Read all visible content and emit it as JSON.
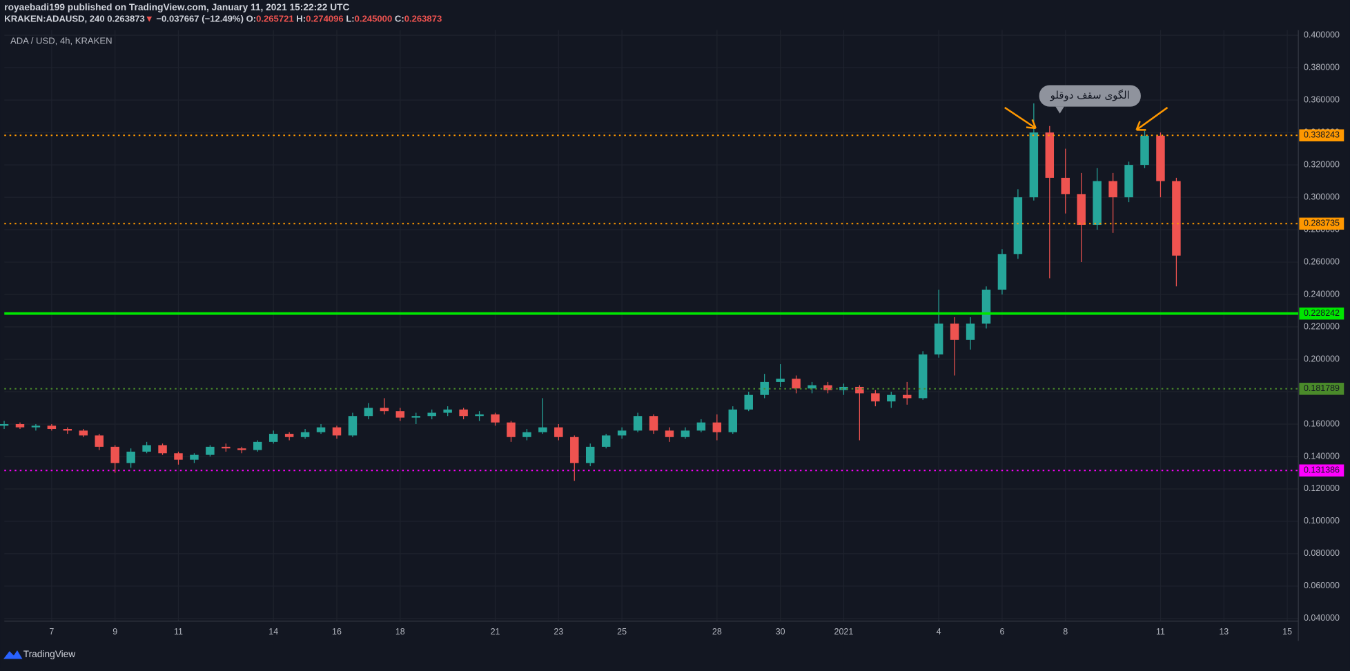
{
  "header": {
    "publisher_line": "royaebadi199 published on TradingView.com, January 11, 2021 15:22:22 UTC",
    "symbol": "KRAKEN:ADAUSD, 240",
    "last": "0.263873",
    "arrow": "▼",
    "change": "−0.037667 (−12.49%)",
    "o_label": "O:",
    "o": "0.265721",
    "h_label": "H:",
    "h": "0.274096",
    "l_label": "L:",
    "l": "0.245000",
    "c_label": "C:",
    "c": "0.263873"
  },
  "footer": {
    "brand": "TradingView"
  },
  "chart_data": {
    "type": "candlestick",
    "title": "ADA / USD, 4h, KRAKEN",
    "up_color": "#26a69a",
    "down_color": "#ef5350",
    "grid": true,
    "xlim": [
      5.505,
      46.35
    ],
    "ylim": [
      0.0384,
      0.4032
    ],
    "xticks": [
      7,
      9,
      11,
      14,
      16,
      18,
      21,
      23,
      25,
      28,
      30,
      {
        "value": 32,
        "label": "2021"
      },
      {
        "value": 35,
        "label": "4"
      },
      {
        "value": 37,
        "label": "6"
      },
      {
        "value": 39,
        "label": "8"
      },
      {
        "value": 42,
        "label": "11"
      },
      {
        "value": 44,
        "label": "13"
      },
      {
        "value": 46,
        "label": "15"
      }
    ],
    "yticks": [
      {
        "value": 0.04,
        "label": "0.040000"
      },
      {
        "value": 0.06,
        "label": "0.060000"
      },
      {
        "value": 0.08,
        "label": "0.080000"
      },
      {
        "value": 0.1,
        "label": "0.100000"
      },
      {
        "value": 0.12,
        "label": "0.120000"
      },
      {
        "value": 0.14,
        "label": "0.140000"
      },
      {
        "value": 0.16,
        "label": "0.160000"
      },
      {
        "value": 0.18,
        "label": "0.180000"
      },
      {
        "value": 0.2,
        "label": "0.200000"
      },
      {
        "value": 0.22,
        "label": "0.220000"
      },
      {
        "value": 0.24,
        "label": "0.240000"
      },
      {
        "value": 0.26,
        "label": "0.260000"
      },
      {
        "value": 0.28,
        "label": "0.280000"
      },
      {
        "value": 0.3,
        "label": "0.300000"
      },
      {
        "value": 0.32,
        "label": "0.320000"
      },
      {
        "value": 0.34,
        "label": "0.340000"
      },
      {
        "value": 0.36,
        "label": "0.360000"
      },
      {
        "value": 0.38,
        "label": "0.380000"
      },
      {
        "value": 0.4,
        "label": "0.400000"
      }
    ],
    "x": [
      5.5,
      6,
      6.5,
      7,
      7.5,
      8,
      8.5,
      9,
      9.5,
      10,
      10.5,
      11,
      11.5,
      12,
      12.5,
      13,
      13.5,
      14,
      14.5,
      15,
      15.5,
      16,
      16.5,
      17,
      17.5,
      18,
      18.5,
      19,
      19.5,
      20,
      20.5,
      21,
      21.5,
      22,
      22.5,
      23,
      23.5,
      24,
      24.5,
      25,
      25.5,
      26,
      26.5,
      27,
      27.5,
      28,
      28.5,
      29,
      29.5,
      30,
      30.5,
      31,
      31.5,
      32,
      32.5,
      33,
      33.5,
      34,
      34.5,
      35,
      35.5,
      36,
      36.5,
      37,
      37.5,
      38,
      38.5,
      39,
      39.5,
      40,
      40.5,
      41,
      41.5,
      42,
      42.5
    ],
    "ohlc": [
      [
        0.159,
        0.162,
        0.157,
        0.16
      ],
      [
        0.16,
        0.161,
        0.157,
        0.158
      ],
      [
        0.158,
        0.16,
        0.156,
        0.159
      ],
      [
        0.159,
        0.16,
        0.156,
        0.157
      ],
      [
        0.157,
        0.158,
        0.154,
        0.156
      ],
      [
        0.156,
        0.157,
        0.152,
        0.153
      ],
      [
        0.153,
        0.154,
        0.144,
        0.146
      ],
      [
        0.146,
        0.147,
        0.13,
        0.136
      ],
      [
        0.136,
        0.145,
        0.133,
        0.143
      ],
      [
        0.143,
        0.149,
        0.142,
        0.147
      ],
      [
        0.147,
        0.148,
        0.141,
        0.142
      ],
      [
        0.142,
        0.143,
        0.135,
        0.138
      ],
      [
        0.138,
        0.142,
        0.136,
        0.141
      ],
      [
        0.141,
        0.147,
        0.14,
        0.146
      ],
      [
        0.146,
        0.148,
        0.143,
        0.145
      ],
      [
        0.145,
        0.146,
        0.142,
        0.144
      ],
      [
        0.144,
        0.15,
        0.143,
        0.149
      ],
      [
        0.149,
        0.156,
        0.148,
        0.154
      ],
      [
        0.154,
        0.155,
        0.15,
        0.152
      ],
      [
        0.152,
        0.157,
        0.151,
        0.155
      ],
      [
        0.155,
        0.16,
        0.154,
        0.158
      ],
      [
        0.158,
        0.159,
        0.151,
        0.153
      ],
      [
        0.153,
        0.167,
        0.152,
        0.165
      ],
      [
        0.165,
        0.173,
        0.163,
        0.17
      ],
      [
        0.17,
        0.176,
        0.166,
        0.168
      ],
      [
        0.168,
        0.17,
        0.162,
        0.164
      ],
      [
        0.164,
        0.167,
        0.16,
        0.165
      ],
      [
        0.165,
        0.169,
        0.163,
        0.167
      ],
      [
        0.167,
        0.171,
        0.165,
        0.169
      ],
      [
        0.169,
        0.17,
        0.163,
        0.165
      ],
      [
        0.165,
        0.168,
        0.162,
        0.166
      ],
      [
        0.166,
        0.167,
        0.159,
        0.161
      ],
      [
        0.161,
        0.162,
        0.149,
        0.152
      ],
      [
        0.152,
        0.157,
        0.15,
        0.155
      ],
      [
        0.155,
        0.176,
        0.154,
        0.158
      ],
      [
        0.158,
        0.16,
        0.15,
        0.152
      ],
      [
        0.152,
        0.153,
        0.125,
        0.136
      ],
      [
        0.136,
        0.148,
        0.134,
        0.146
      ],
      [
        0.146,
        0.154,
        0.145,
        0.153
      ],
      [
        0.153,
        0.158,
        0.151,
        0.156
      ],
      [
        0.156,
        0.167,
        0.155,
        0.165
      ],
      [
        0.165,
        0.166,
        0.154,
        0.156
      ],
      [
        0.156,
        0.158,
        0.149,
        0.152
      ],
      [
        0.152,
        0.158,
        0.151,
        0.156
      ],
      [
        0.156,
        0.163,
        0.155,
        0.161
      ],
      [
        0.161,
        0.166,
        0.15,
        0.155
      ],
      [
        0.155,
        0.171,
        0.154,
        0.169
      ],
      [
        0.169,
        0.18,
        0.168,
        0.178
      ],
      [
        0.178,
        0.191,
        0.176,
        0.186
      ],
      [
        0.186,
        0.197,
        0.183,
        0.188
      ],
      [
        0.188,
        0.19,
        0.179,
        0.182
      ],
      [
        0.182,
        0.186,
        0.179,
        0.184
      ],
      [
        0.184,
        0.186,
        0.179,
        0.181
      ],
      [
        0.181,
        0.185,
        0.178,
        0.183
      ],
      [
        0.183,
        0.184,
        0.15,
        0.179
      ],
      [
        0.179,
        0.181,
        0.171,
        0.174
      ],
      [
        0.174,
        0.18,
        0.17,
        0.178
      ],
      [
        0.178,
        0.186,
        0.172,
        0.176
      ],
      [
        0.176,
        0.205,
        0.175,
        0.203
      ],
      [
        0.203,
        0.243,
        0.201,
        0.222
      ],
      [
        0.222,
        0.226,
        0.19,
        0.212
      ],
      [
        0.212,
        0.226,
        0.206,
        0.222
      ],
      [
        0.222,
        0.245,
        0.219,
        0.243
      ],
      [
        0.243,
        0.268,
        0.24,
        0.265
      ],
      [
        0.265,
        0.305,
        0.262,
        0.3
      ],
      [
        0.3,
        0.358,
        0.298,
        0.34
      ],
      [
        0.34,
        0.344,
        0.25,
        0.312
      ],
      [
        0.312,
        0.33,
        0.29,
        0.302
      ],
      [
        0.302,
        0.315,
        0.26,
        0.283
      ],
      [
        0.283,
        0.318,
        0.28,
        0.31
      ],
      [
        0.31,
        0.315,
        0.278,
        0.3
      ],
      [
        0.3,
        0.322,
        0.297,
        0.32
      ],
      [
        0.32,
        0.341,
        0.318,
        0.338
      ],
      [
        0.338,
        0.34,
        0.3,
        0.31
      ],
      [
        0.31,
        0.312,
        0.245,
        0.264
      ]
    ],
    "hlines": [
      {
        "value": 0.338243,
        "color": "#ff9800",
        "text_color": "#131722",
        "style": "dotted"
      },
      {
        "value": 0.283735,
        "color": "#ff9800",
        "text_color": "#131722",
        "style": "dotted"
      },
      {
        "value": 0.228242,
        "color": "#00e600",
        "text_color": "#131722",
        "style": "solid"
      },
      {
        "value": 0.181789,
        "color": "#4a8a2a",
        "text_color": "#131722",
        "style": "dotted"
      },
      {
        "value": 0.131386,
        "color": "#ff00ff",
        "text_color": "#131722",
        "style": "dotted"
      }
    ],
    "annotation": "الگوی سقف دوقلو"
  }
}
